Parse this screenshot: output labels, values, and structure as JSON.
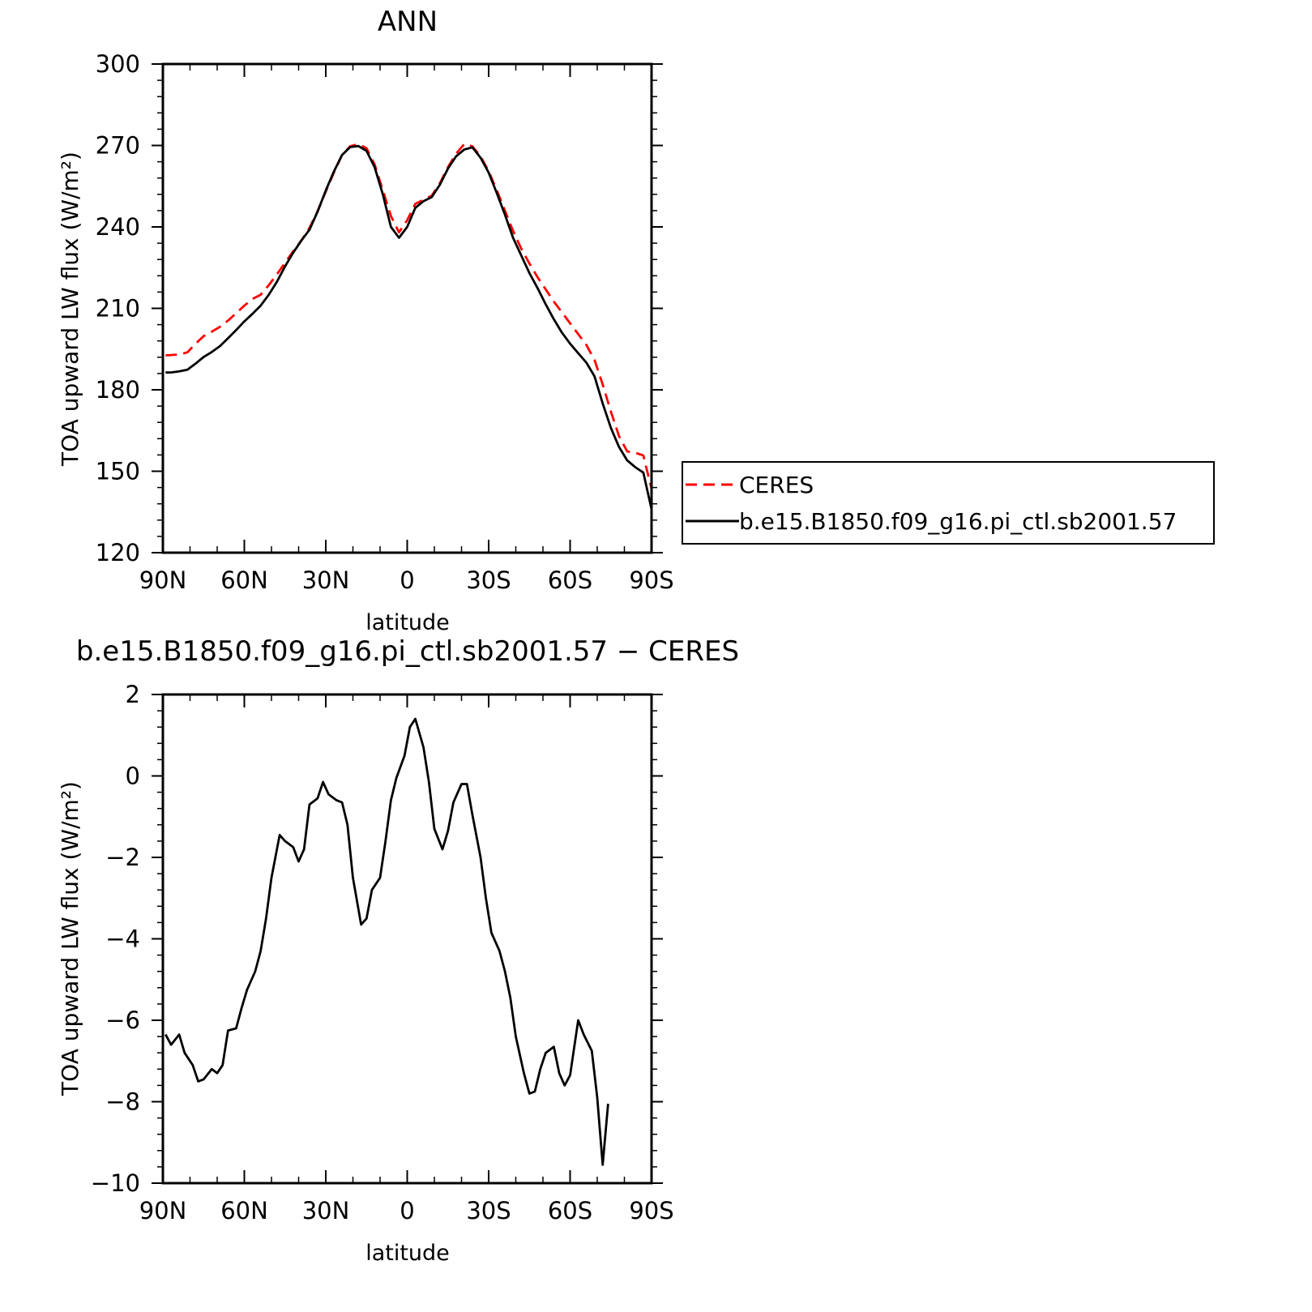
{
  "panels": [
    {
      "title": "ANN",
      "legend": {
        "entries": [
          "CERES",
          "b.e15.B1850.f09_g16.pi_ctl.sb2001.57"
        ]
      },
      "xlabel": "latitude",
      "ylabel": "TOA upward LW flux (W/m²)"
    },
    {
      "title": "b.e15.B1850.f09_g16.pi_ctl.sb2001.57 − CERES",
      "xlabel": "latitude",
      "ylabel": "TOA upward LW flux (W/m²)"
    }
  ],
  "chart_data": [
    {
      "type": "line",
      "title": "ANN",
      "xlabel": "latitude",
      "ylabel": "TOA upward LW flux (W/m²)",
      "xlim": [
        90,
        -90
      ],
      "ylim": [
        120,
        300
      ],
      "xticks": [
        90,
        60,
        30,
        0,
        -30,
        -60,
        -90
      ],
      "xtick_labels": [
        "90N",
        "60N",
        "30N",
        "0",
        "30S",
        "60S",
        "90S"
      ],
      "yticks": [
        120,
        150,
        180,
        210,
        240,
        270,
        300
      ],
      "ytick_labels": [
        "120",
        "150",
        "180",
        "210",
        "240",
        "270",
        "300"
      ],
      "legend_position": "right",
      "grid": false,
      "series": [
        {
          "name": "CERES",
          "color": "#ff0000",
          "dash": "dashed",
          "points": [
            [
              89,
              192.7
            ],
            [
              87,
              192.8
            ],
            [
              84,
              193.0
            ],
            [
              81,
              193.8
            ],
            [
              78,
              196.9
            ],
            [
              75,
              199.8
            ],
            [
              72,
              201.4
            ],
            [
              69,
              203.2
            ],
            [
              66,
              205.5
            ],
            [
              63,
              208.2
            ],
            [
              60,
              211.0
            ],
            [
              57,
              213.5
            ],
            [
              54,
              215.0
            ],
            [
              51,
              218.5
            ],
            [
              48,
              222.5
            ],
            [
              45,
              226.8
            ],
            [
              42,
              231.0
            ],
            [
              39,
              235.0
            ],
            [
              36,
              239.6
            ],
            [
              33,
              245.8
            ],
            [
              30,
              253.0
            ],
            [
              27,
              260.0
            ],
            [
              24,
              266.5
            ],
            [
              21,
              269.7
            ],
            [
              18,
              270.5
            ],
            [
              15,
              269.0
            ],
            [
              12,
              263.0
            ],
            [
              9,
              253.5
            ],
            [
              6,
              244.0
            ],
            [
              3,
              238.0
            ],
            [
              0,
              242.5
            ],
            [
              -3,
              248.5
            ],
            [
              -6,
              250.0
            ],
            [
              -9,
              251.5
            ],
            [
              -12,
              256.0
            ],
            [
              -15,
              262.0
            ],
            [
              -18,
              267.0
            ],
            [
              -21,
              270.5
            ],
            [
              -24,
              269.7
            ],
            [
              -27,
              266.0
            ],
            [
              -30,
              260.5
            ],
            [
              -33,
              253.5
            ],
            [
              -36,
              246.0
            ],
            [
              -39,
              238.5
            ],
            [
              -42,
              232.0
            ],
            [
              -45,
              226.5
            ],
            [
              -48,
              221.5
            ],
            [
              -51,
              217.0
            ],
            [
              -54,
              212.5
            ],
            [
              -57,
              208.5
            ],
            [
              -60,
              204.5
            ],
            [
              -63,
              200.5
            ],
            [
              -66,
              196.5
            ],
            [
              -69,
              191.0
            ],
            [
              -72,
              182.0
            ],
            [
              -75,
              172.0
            ],
            [
              -78,
              163.0
            ],
            [
              -81,
              157.3
            ],
            [
              -84,
              156.8
            ],
            [
              -87,
              155.8
            ],
            [
              -90,
              143.5
            ]
          ]
        },
        {
          "name": "b.e15.B1850.f09_g16.pi_ctl.sb2001.57",
          "color": "#000000",
          "dash": "solid",
          "points": [
            [
              89,
              186.4
            ],
            [
              87,
              186.4
            ],
            [
              84,
              186.8
            ],
            [
              81,
              187.4
            ],
            [
              78,
              189.6
            ],
            [
              75,
              192.1
            ],
            [
              72,
              193.9
            ],
            [
              69,
              196.1
            ],
            [
              66,
              199.0
            ],
            [
              63,
              202.0
            ],
            [
              60,
              205.2
            ],
            [
              57,
              208.0
            ],
            [
              54,
              211.0
            ],
            [
              51,
              215.0
            ],
            [
              48,
              219.8
            ],
            [
              45,
              225.5
            ],
            [
              42,
              230.5
            ],
            [
              39,
              235.0
            ],
            [
              36,
              239.0
            ],
            [
              33,
              245.6
            ],
            [
              30,
              253.4
            ],
            [
              27,
              260.4
            ],
            [
              24,
              266.5
            ],
            [
              21,
              269.4
            ],
            [
              18,
              269.8
            ],
            [
              15,
              268.0
            ],
            [
              12,
              262.0
            ],
            [
              9,
              252.0
            ],
            [
              6,
              240.0
            ],
            [
              3,
              236.0
            ],
            [
              0,
              240.0
            ],
            [
              -3,
              247.0
            ],
            [
              -6,
              249.5
            ],
            [
              -9,
              251.0
            ],
            [
              -12,
              255.5
            ],
            [
              -15,
              261.5
            ],
            [
              -18,
              266.0
            ],
            [
              -21,
              268.5
            ],
            [
              -24,
              269.3
            ],
            [
              -27,
              265.5
            ],
            [
              -30,
              260.0
            ],
            [
              -33,
              252.5
            ],
            [
              -36,
              244.5
            ],
            [
              -39,
              236.0
            ],
            [
              -42,
              229.5
            ],
            [
              -45,
              223.0
            ],
            [
              -48,
              217.5
            ],
            [
              -51,
              211.5
            ],
            [
              -54,
              206.0
            ],
            [
              -57,
              201.0
            ],
            [
              -60,
              197.0
            ],
            [
              -63,
              193.5
            ],
            [
              -66,
              190.0
            ],
            [
              -69,
              185.0
            ],
            [
              -72,
              175.0
            ],
            [
              -75,
              166.0
            ],
            [
              -78,
              159.0
            ],
            [
              -81,
              154.0
            ],
            [
              -84,
              151.5
            ],
            [
              -87,
              149.5
            ],
            [
              -90,
              136.0
            ]
          ]
        }
      ]
    },
    {
      "type": "line",
      "title": "b.e15.B1850.f09_g16.pi_ctl.sb2001.57 − CERES",
      "xlabel": "latitude",
      "ylabel": "TOA upward LW flux (W/m²)",
      "xlim": [
        90,
        -90
      ],
      "ylim": [
        -10,
        2
      ],
      "xticks": [
        90,
        60,
        30,
        0,
        -30,
        -60,
        -90
      ],
      "xtick_labels": [
        "90N",
        "60N",
        "30N",
        "0",
        "30S",
        "60S",
        "90S"
      ],
      "yticks": [
        -10,
        -8,
        -6,
        -4,
        -2,
        0,
        2
      ],
      "ytick_labels": [
        "−10",
        "−8",
        "−6",
        "−4",
        "−2",
        "0",
        "2"
      ],
      "grid": false,
      "series": [
        {
          "color": "#000000",
          "dash": "solid",
          "points": [
            [
              89,
              -6.35
            ],
            [
              87,
              -6.6
            ],
            [
              84,
              -6.35
            ],
            [
              82,
              -6.8
            ],
            [
              79,
              -7.1
            ],
            [
              77,
              -7.5
            ],
            [
              75,
              -7.45
            ],
            [
              72,
              -7.2
            ],
            [
              70,
              -7.3
            ],
            [
              68,
              -7.1
            ],
            [
              66,
              -6.25
            ],
            [
              63,
              -6.2
            ],
            [
              61,
              -5.7
            ],
            [
              59,
              -5.25
            ],
            [
              56,
              -4.8
            ],
            [
              54,
              -4.3
            ],
            [
              52,
              -3.5
            ],
            [
              50,
              -2.5
            ],
            [
              47,
              -1.45
            ],
            [
              45,
              -1.6
            ],
            [
              42,
              -1.75
            ],
            [
              40,
              -2.1
            ],
            [
              38,
              -1.8
            ],
            [
              36,
              -0.7
            ],
            [
              33,
              -0.55
            ],
            [
              31,
              -0.15
            ],
            [
              29,
              -0.45
            ],
            [
              26,
              -0.6
            ],
            [
              24,
              -0.65
            ],
            [
              22,
              -1.2
            ],
            [
              20,
              -2.5
            ],
            [
              17,
              -3.65
            ],
            [
              15,
              -3.5
            ],
            [
              13,
              -2.8
            ],
            [
              10,
              -2.5
            ],
            [
              8,
              -1.6
            ],
            [
              6,
              -0.6
            ],
            [
              4,
              -0.05
            ],
            [
              1,
              0.5
            ],
            [
              -1,
              1.2
            ],
            [
              -3,
              1.4
            ],
            [
              -6,
              0.7
            ],
            [
              -8,
              -0.15
            ],
            [
              -10,
              -1.3
            ],
            [
              -13,
              -1.8
            ],
            [
              -15,
              -1.35
            ],
            [
              -17,
              -0.65
            ],
            [
              -20,
              -0.2
            ],
            [
              -22,
              -0.2
            ],
            [
              -24,
              -0.95
            ],
            [
              -27,
              -2.0
            ],
            [
              -29,
              -3.0
            ],
            [
              -31,
              -3.85
            ],
            [
              -34,
              -4.3
            ],
            [
              -36,
              -4.8
            ],
            [
              -38,
              -5.45
            ],
            [
              -40,
              -6.4
            ],
            [
              -43,
              -7.3
            ],
            [
              -45,
              -7.8
            ],
            [
              -47,
              -7.75
            ],
            [
              -49,
              -7.2
            ],
            [
              -51,
              -6.8
            ],
            [
              -54,
              -6.65
            ],
            [
              -56,
              -7.3
            ],
            [
              -58,
              -7.6
            ],
            [
              -60,
              -7.35
            ],
            [
              -63,
              -6.0
            ],
            [
              -65,
              -6.35
            ],
            [
              -68,
              -6.75
            ],
            [
              -70,
              -7.9
            ],
            [
              -72,
              -9.55
            ],
            [
              -74,
              -8.05
            ]
          ]
        }
      ]
    }
  ]
}
